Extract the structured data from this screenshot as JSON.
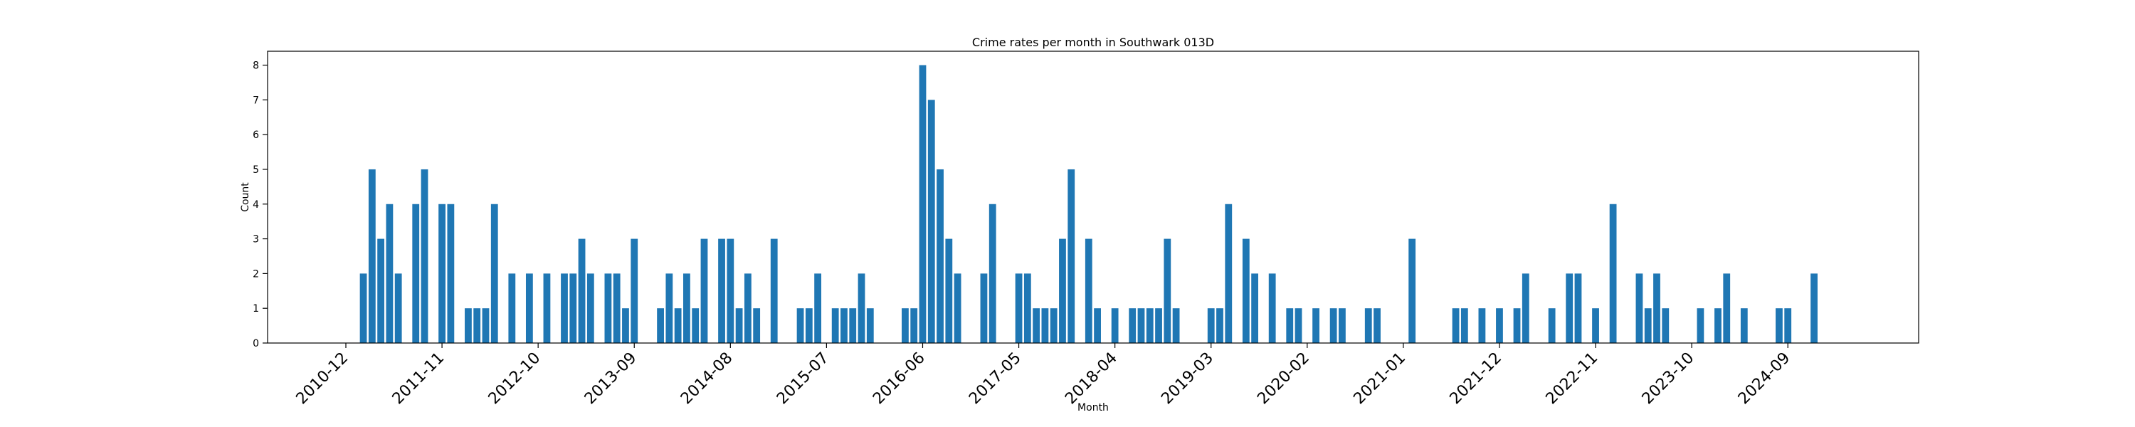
{
  "chart_data": {
    "type": "bar",
    "title": "Crime rates per month in Southwark 013D",
    "xlabel": "Month",
    "ylabel": "Count",
    "ylim": [
      0,
      8.4
    ],
    "y_ticks": [
      0,
      1,
      2,
      3,
      4,
      5,
      6,
      7,
      8
    ],
    "x_tick_labels": [
      "2010-12",
      "2011-11",
      "2012-10",
      "2013-09",
      "2014-08",
      "2015-07",
      "2016-06",
      "2017-05",
      "2018-04",
      "2019-03",
      "2020-02",
      "2021-01",
      "2021-12",
      "2022-11",
      "2023-10",
      "2024-09"
    ],
    "color": "#1f77b4",
    "grid": false,
    "bars": [
      {
        "month": "2011-02",
        "value": 2
      },
      {
        "month": "2011-03",
        "value": 5
      },
      {
        "month": "2011-04",
        "value": 3
      },
      {
        "month": "2011-05",
        "value": 4
      },
      {
        "month": "2011-06",
        "value": 2
      },
      {
        "month": "2011-08",
        "value": 4
      },
      {
        "month": "2011-09",
        "value": 5
      },
      {
        "month": "2011-11",
        "value": 4
      },
      {
        "month": "2011-12",
        "value": 4
      },
      {
        "month": "2012-02",
        "value": 1
      },
      {
        "month": "2012-03",
        "value": 1
      },
      {
        "month": "2012-04",
        "value": 1
      },
      {
        "month": "2012-05",
        "value": 4
      },
      {
        "month": "2012-07",
        "value": 2
      },
      {
        "month": "2012-09",
        "value": 2
      },
      {
        "month": "2012-11",
        "value": 2
      },
      {
        "month": "2013-01",
        "value": 2
      },
      {
        "month": "2013-02",
        "value": 2
      },
      {
        "month": "2013-03",
        "value": 3
      },
      {
        "month": "2013-04",
        "value": 2
      },
      {
        "month": "2013-06",
        "value": 2
      },
      {
        "month": "2013-07",
        "value": 2
      },
      {
        "month": "2013-08",
        "value": 1
      },
      {
        "month": "2013-09",
        "value": 3
      },
      {
        "month": "2013-12",
        "value": 1
      },
      {
        "month": "2014-01",
        "value": 2
      },
      {
        "month": "2014-02",
        "value": 1
      },
      {
        "month": "2014-03",
        "value": 2
      },
      {
        "month": "2014-04",
        "value": 1
      },
      {
        "month": "2014-05",
        "value": 3
      },
      {
        "month": "2014-07",
        "value": 3
      },
      {
        "month": "2014-08",
        "value": 3
      },
      {
        "month": "2014-09",
        "value": 1
      },
      {
        "month": "2014-10",
        "value": 2
      },
      {
        "month": "2014-11",
        "value": 1
      },
      {
        "month": "2015-01",
        "value": 3
      },
      {
        "month": "2015-04",
        "value": 1
      },
      {
        "month": "2015-05",
        "value": 1
      },
      {
        "month": "2015-06",
        "value": 2
      },
      {
        "month": "2015-08",
        "value": 1
      },
      {
        "month": "2015-09",
        "value": 1
      },
      {
        "month": "2015-10",
        "value": 1
      },
      {
        "month": "2015-11",
        "value": 2
      },
      {
        "month": "2015-12",
        "value": 1
      },
      {
        "month": "2016-04",
        "value": 1
      },
      {
        "month": "2016-05",
        "value": 1
      },
      {
        "month": "2016-06",
        "value": 8
      },
      {
        "month": "2016-07",
        "value": 7
      },
      {
        "month": "2016-08",
        "value": 5
      },
      {
        "month": "2016-09",
        "value": 3
      },
      {
        "month": "2016-10",
        "value": 2
      },
      {
        "month": "2017-01",
        "value": 2
      },
      {
        "month": "2017-02",
        "value": 4
      },
      {
        "month": "2017-05",
        "value": 2
      },
      {
        "month": "2017-06",
        "value": 2
      },
      {
        "month": "2017-07",
        "value": 1
      },
      {
        "month": "2017-08",
        "value": 1
      },
      {
        "month": "2017-09",
        "value": 1
      },
      {
        "month": "2017-10",
        "value": 3
      },
      {
        "month": "2017-11",
        "value": 5
      },
      {
        "month": "2018-01",
        "value": 3
      },
      {
        "month": "2018-02",
        "value": 1
      },
      {
        "month": "2018-04",
        "value": 1
      },
      {
        "month": "2018-06",
        "value": 1
      },
      {
        "month": "2018-07",
        "value": 1
      },
      {
        "month": "2018-08",
        "value": 1
      },
      {
        "month": "2018-09",
        "value": 1
      },
      {
        "month": "2018-10",
        "value": 3
      },
      {
        "month": "2018-11",
        "value": 1
      },
      {
        "month": "2019-03",
        "value": 1
      },
      {
        "month": "2019-04",
        "value": 1
      },
      {
        "month": "2019-05",
        "value": 4
      },
      {
        "month": "2019-07",
        "value": 3
      },
      {
        "month": "2019-08",
        "value": 2
      },
      {
        "month": "2019-10",
        "value": 2
      },
      {
        "month": "2019-12",
        "value": 1
      },
      {
        "month": "2020-01",
        "value": 1
      },
      {
        "month": "2020-03",
        "value": 1
      },
      {
        "month": "2020-05",
        "value": 1
      },
      {
        "month": "2020-06",
        "value": 1
      },
      {
        "month": "2020-09",
        "value": 1
      },
      {
        "month": "2020-10",
        "value": 1
      },
      {
        "month": "2021-02",
        "value": 3
      },
      {
        "month": "2021-07",
        "value": 1
      },
      {
        "month": "2021-08",
        "value": 1
      },
      {
        "month": "2021-10",
        "value": 1
      },
      {
        "month": "2021-12",
        "value": 1
      },
      {
        "month": "2022-02",
        "value": 1
      },
      {
        "month": "2022-03",
        "value": 2
      },
      {
        "month": "2022-06",
        "value": 1
      },
      {
        "month": "2022-08",
        "value": 2
      },
      {
        "month": "2022-09",
        "value": 2
      },
      {
        "month": "2022-11",
        "value": 1
      },
      {
        "month": "2023-01",
        "value": 4
      },
      {
        "month": "2023-04",
        "value": 2
      },
      {
        "month": "2023-05",
        "value": 1
      },
      {
        "month": "2023-06",
        "value": 2
      },
      {
        "month": "2023-07",
        "value": 1
      },
      {
        "month": "2023-11",
        "value": 1
      },
      {
        "month": "2024-01",
        "value": 1
      },
      {
        "month": "2024-02",
        "value": 2
      },
      {
        "month": "2024-04",
        "value": 1
      },
      {
        "month": "2024-08",
        "value": 1
      },
      {
        "month": "2024-09",
        "value": 1
      },
      {
        "month": "2024-12",
        "value": 2
      }
    ]
  }
}
